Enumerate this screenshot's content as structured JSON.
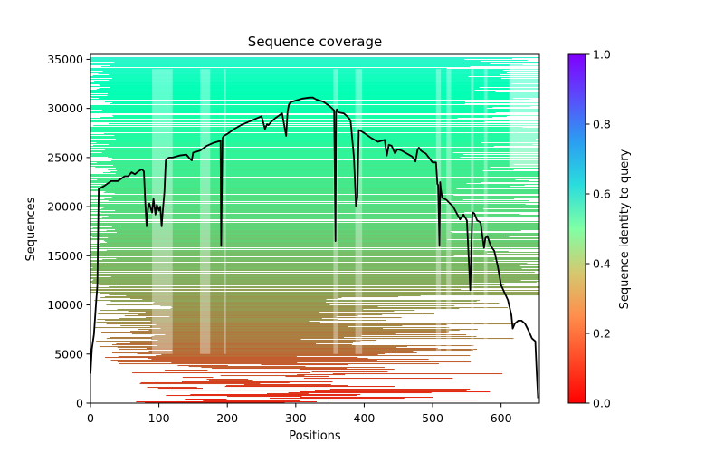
{
  "chart_data": {
    "type": "heatmap",
    "title": "Sequence coverage",
    "xlabel": "Positions",
    "ylabel": "Sequences",
    "xlim": [
      0,
      656
    ],
    "ylim": [
      0,
      35500
    ],
    "xticks": [
      0,
      100,
      200,
      300,
      400,
      500,
      600
    ],
    "yticks": [
      0,
      5000,
      10000,
      15000,
      20000,
      25000,
      30000,
      35000
    ],
    "colorbar": {
      "label": "Sequence identity to query",
      "colormap": "rainbow_r",
      "range": [
        0.0,
        1.0
      ],
      "ticks": [
        "0.0",
        "0.2",
        "0.4",
        "0.6",
        "0.8",
        "1.0"
      ],
      "ticks_values": [
        0.0,
        0.2,
        0.4,
        0.6,
        0.8,
        1.0
      ]
    },
    "identity_by_sequence_index": {
      "x": [
        0,
        3000,
        6000,
        9000,
        12000,
        15000,
        18000,
        21000,
        24000,
        27000,
        30000,
        33000,
        35300
      ],
      "identity": [
        0.04,
        0.1,
        0.15,
        0.19,
        0.23,
        0.27,
        0.31,
        0.35,
        0.38,
        0.43,
        0.47,
        0.53,
        0.6
      ]
    },
    "coverage_line": {
      "name": "coverage",
      "color": "#000000",
      "x": [
        0,
        2,
        5,
        8,
        10,
        12,
        20,
        30,
        40,
        50,
        55,
        60,
        65,
        70,
        75,
        78,
        80,
        82,
        84,
        86,
        90,
        92,
        95,
        97,
        100,
        102,
        104,
        106,
        108,
        110,
        112,
        115,
        120,
        130,
        140,
        145,
        148,
        150,
        160,
        170,
        180,
        190,
        191,
        193,
        195,
        200,
        210,
        220,
        230,
        240,
        250,
        255,
        258,
        260,
        265,
        270,
        280,
        286,
        288,
        290,
        292,
        295,
        300,
        310,
        320,
        325,
        330,
        340,
        350,
        356,
        358,
        359,
        360,
        362,
        370,
        375,
        380,
        385,
        388,
        390,
        392,
        395,
        400,
        410,
        420,
        430,
        433,
        436,
        440,
        445,
        448,
        451,
        455,
        460,
        470,
        475,
        478,
        480,
        483,
        485,
        490,
        500,
        505,
        507,
        508,
        510,
        511,
        512,
        514,
        520,
        530,
        540,
        545,
        550,
        555,
        558,
        559,
        561,
        565,
        570,
        575,
        577,
        580,
        585,
        590,
        595,
        600,
        610,
        615,
        617,
        620,
        625,
        630,
        635,
        640,
        645,
        650,
        652,
        654
      ],
      "y": [
        3000,
        5500,
        7000,
        10000,
        12000,
        21800,
        22100,
        22600,
        22600,
        23100,
        23100,
        23500,
        23300,
        23600,
        23800,
        23600,
        20500,
        18000,
        19800,
        20300,
        19400,
        20800,
        19200,
        20200,
        19600,
        20000,
        18000,
        19800,
        21500,
        24700,
        24900,
        25000,
        25000,
        25200,
        25300,
        24900,
        24700,
        25500,
        25700,
        26200,
        26500,
        26700,
        16000,
        27000,
        27200,
        27400,
        27900,
        28300,
        28600,
        28900,
        29200,
        27900,
        28400,
        28300,
        28700,
        29000,
        29500,
        27200,
        29700,
        30400,
        30600,
        30700,
        30800,
        31000,
        31100,
        31100,
        30900,
        30700,
        30200,
        29800,
        16500,
        29700,
        29900,
        29600,
        29500,
        29200,
        28800,
        25000,
        20000,
        21000,
        27800,
        27700,
        27500,
        27000,
        26600,
        26800,
        25200,
        26300,
        26200,
        25400,
        25800,
        25800,
        25700,
        25500,
        25100,
        24600,
        25800,
        26000,
        25700,
        25600,
        25400,
        24500,
        24500,
        22300,
        22200,
        16000,
        22500,
        21800,
        20900,
        20700,
        20000,
        18700,
        19200,
        18600,
        11500,
        19300,
        19400,
        19300,
        18600,
        18400,
        15800,
        16800,
        17000,
        16000,
        15500,
        14000,
        12000,
        10500,
        9000,
        7600,
        8100,
        8400,
        8400,
        8100,
        7400,
        6600,
        6300,
        3200,
        500
      ]
    }
  }
}
